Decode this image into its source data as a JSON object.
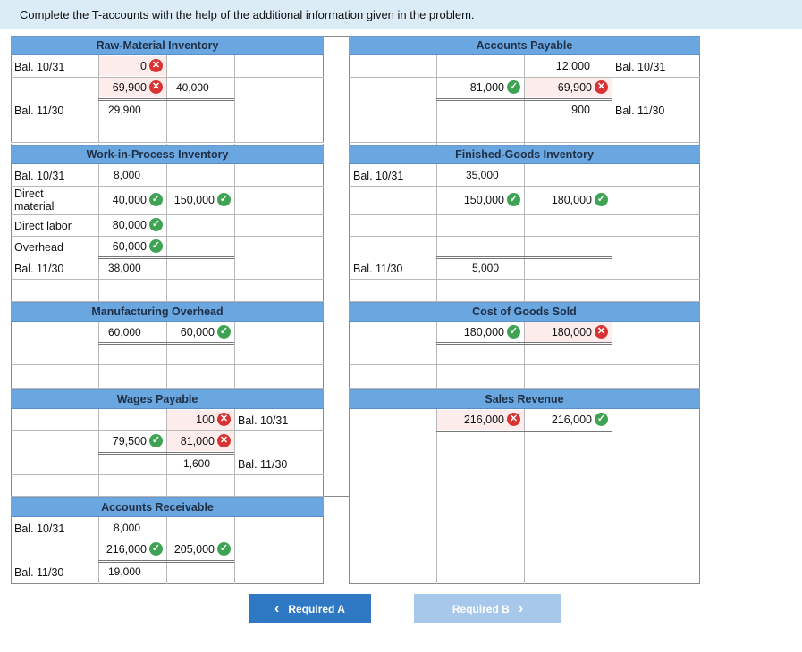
{
  "instruction": "Complete the T-accounts with the help of the additional information given in the problem.",
  "raw_material": {
    "title": "Raw-Material Inventory",
    "bal_1031": "Bal. 10/31",
    "begin": "0",
    "debit2": "69,900",
    "credit2": "40,000",
    "bal_1130": "Bal. 11/30",
    "end": "29,900"
  },
  "accounts_payable": {
    "title": "Accounts Payable",
    "begin": "12,000",
    "bal_1031": "Bal. 10/31",
    "debit2": "81,000",
    "credit2": "69,900",
    "end": "900",
    "bal_1130": "Bal. 11/30"
  },
  "wip": {
    "title": "Work-in-Process Inventory",
    "bal_1031": "Bal. 10/31",
    "begin": "8,000",
    "dm_label": "Direct material",
    "dm": "40,000",
    "credit": "150,000",
    "dl_label": "Direct labor",
    "dl": "80,000",
    "oh_label": "Overhead",
    "oh": "60,000",
    "bal_1130": "Bal. 11/30",
    "end": "38,000"
  },
  "finished_goods": {
    "title": "Finished-Goods Inventory",
    "bal_1031": "Bal. 10/31",
    "begin": "35,000",
    "debit": "150,000",
    "credit": "180,000",
    "bal_1130": "Bal. 11/30",
    "end": "5,000"
  },
  "mfg_overhead": {
    "title": "Manufacturing Overhead",
    "debit": "60,000",
    "credit": "60,000"
  },
  "cogs": {
    "title": "Cost of Goods Sold",
    "debit": "180,000",
    "credit": "180,000"
  },
  "wages_payable": {
    "title": "Wages Payable",
    "begin": "100",
    "bal_1031": "Bal. 10/31",
    "debit": "79,500",
    "credit": "81,000",
    "end": "1,600",
    "bal_1130": "Bal. 11/30"
  },
  "sales_revenue": {
    "title": "Sales Revenue",
    "debit": "216,000",
    "credit": "216,000"
  },
  "accounts_receivable": {
    "title": "Accounts Receivable",
    "bal_1031": "Bal. 10/31",
    "begin": "8,000",
    "debit": "216,000",
    "credit": "205,000",
    "bal_1130": "Bal. 11/30",
    "end": "19,000"
  },
  "icons": {
    "check": "✓",
    "cross": "✕"
  },
  "nav": {
    "prev_label": "Required A",
    "next_label": "Required B",
    "prev_chevron": "‹",
    "next_chevron": "›"
  },
  "colors": {
    "header": "#6aa6e0",
    "correct": "#3ea353",
    "incorrect": "#d93232",
    "nav_active": "#2f78c4",
    "nav_disabled": "#a7c8ea"
  }
}
